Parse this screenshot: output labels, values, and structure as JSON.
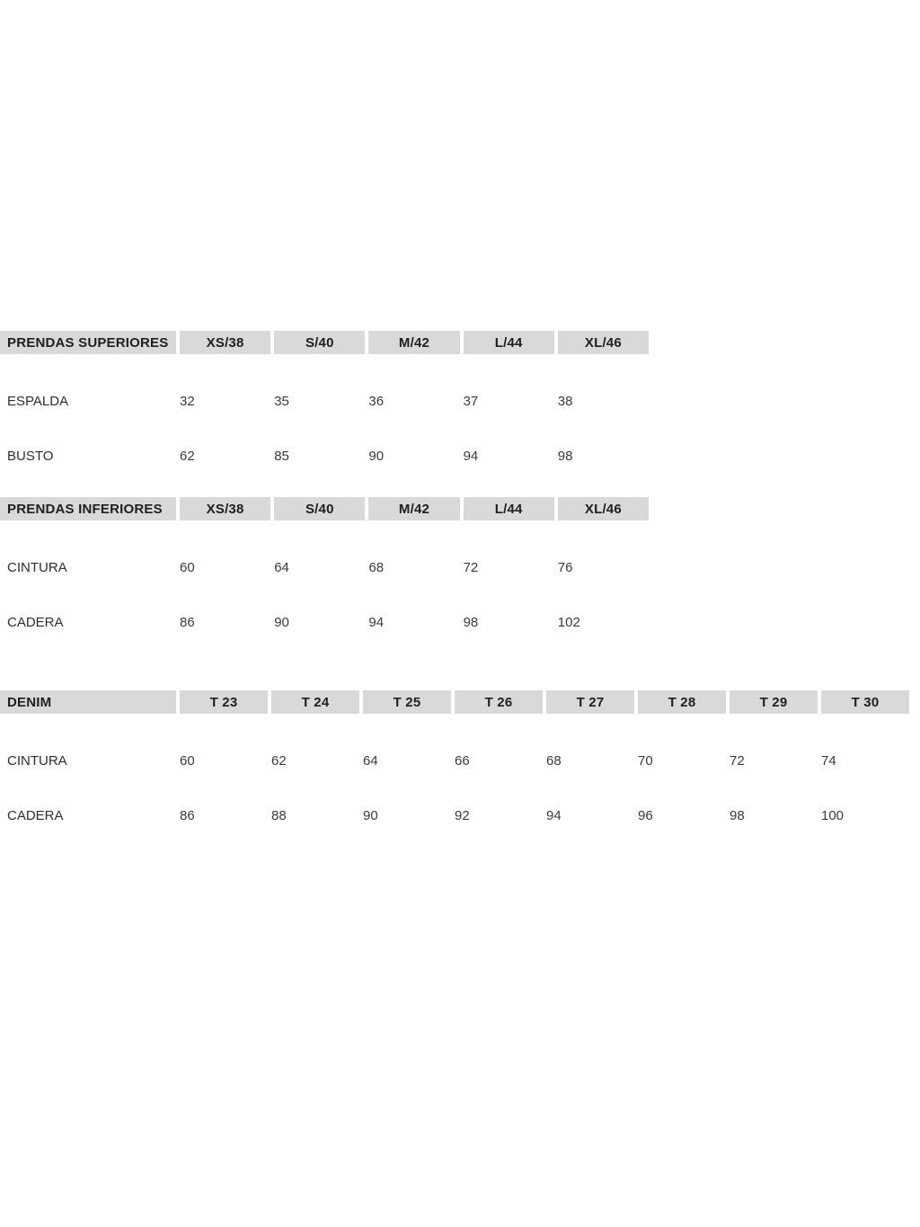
{
  "page": {
    "background": "#ffffff"
  },
  "colors": {
    "header_bg": "#d9d9d9",
    "header_text": "#1f1f1f",
    "label_text": "#2e2e2e",
    "cell_text": "#3a3a3a"
  },
  "tables": [
    {
      "id": "prendas-superiores",
      "header": [
        "PRENDAS SUPERIORES",
        "XS/38",
        "S/40",
        "M/42",
        "L/44",
        "XL/46"
      ],
      "rows": [
        {
          "label": "ESPALDA",
          "values": [
            "32",
            "35",
            "36",
            "37",
            "38"
          ]
        },
        {
          "label": "BUSTO",
          "values": [
            "62",
            "85",
            "90",
            "94",
            "98"
          ]
        }
      ]
    },
    {
      "id": "prendas-inferiores",
      "header": [
        "PRENDAS INFERIORES",
        "XS/38",
        "S/40",
        "M/42",
        "L/44",
        "XL/46"
      ],
      "rows": [
        {
          "label": "CINTURA",
          "values": [
            "60",
            "64",
            "68",
            "72",
            "76"
          ]
        },
        {
          "label": "CADERA",
          "values": [
            "86",
            "90",
            "94",
            "98",
            "102"
          ]
        }
      ]
    },
    {
      "id": "denim",
      "header": [
        "DENIM",
        "T 23",
        "T 24",
        "T 25",
        "T 26",
        "T 27",
        "T 28",
        "T 29",
        "T 30"
      ],
      "rows": [
        {
          "label": "CINTURA",
          "values": [
            "60",
            "62",
            "64",
            "66",
            "68",
            "70",
            "72",
            "74"
          ]
        },
        {
          "label": "CADERA",
          "values": [
            "86",
            "88",
            "90",
            "92",
            "94",
            "96",
            "98",
            "100"
          ]
        }
      ]
    }
  ]
}
